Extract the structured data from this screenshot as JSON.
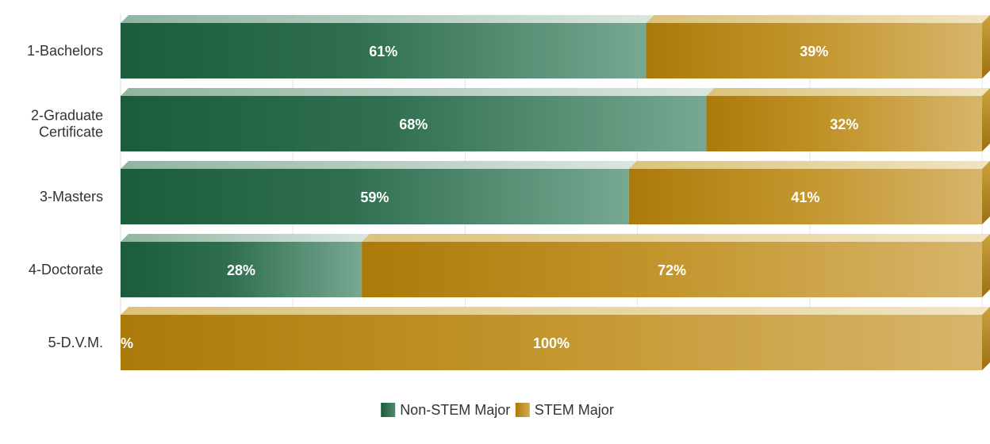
{
  "chart_data": {
    "type": "bar",
    "orientation": "horizontal",
    "stacked": true,
    "percent_stacked": true,
    "categories": [
      "1-Bachelors",
      "2-Graduate\nCertificate",
      "3-Masters",
      "4-Doctorate",
      "5-D.V.M."
    ],
    "series": [
      {
        "name": "Non-STEM Major",
        "values": [
          61,
          68,
          59,
          28,
          0
        ],
        "labels": [
          "61%",
          "68%",
          "59%",
          "28%",
          "%"
        ],
        "color": "#1e5e3e"
      },
      {
        "name": "STEM Major",
        "values": [
          39,
          32,
          41,
          72,
          100
        ],
        "labels": [
          "39%",
          "32%",
          "41%",
          "72%",
          "100%"
        ],
        "color": "#b8860b"
      }
    ],
    "xlim": [
      0,
      100
    ],
    "grid": true,
    "legend": "bottom-center"
  }
}
